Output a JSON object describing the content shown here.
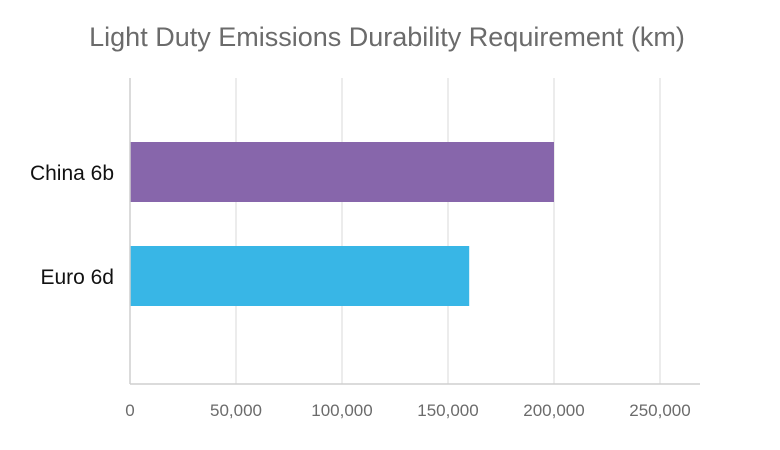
{
  "chart_data": {
    "type": "bar",
    "orientation": "horizontal",
    "title": "Light Duty Emissions Durability Requirement (km)",
    "categories": [
      "China 6b",
      "Euro 6d"
    ],
    "values": [
      200000,
      160000
    ],
    "colors": [
      "#8766ab",
      "#38b6e6"
    ],
    "xlim": [
      0,
      250000
    ],
    "xticks": [
      0,
      50000,
      100000,
      150000,
      200000,
      250000
    ],
    "xtick_labels": [
      "0",
      "50,000",
      "100,000",
      "150,000",
      "200,000",
      "250,000"
    ],
    "grid": true,
    "legend": "none",
    "xlabel": "",
    "ylabel": ""
  }
}
